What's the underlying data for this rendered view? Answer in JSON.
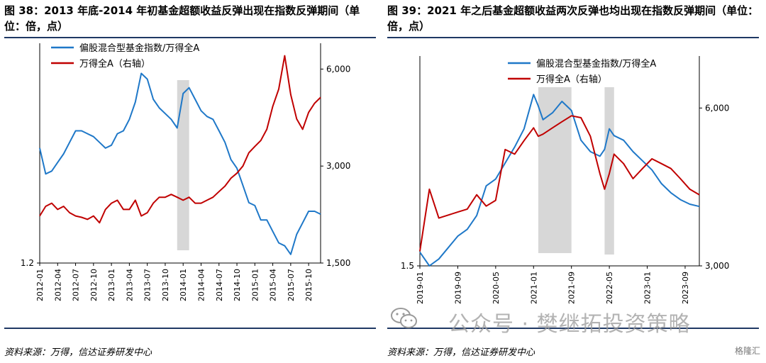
{
  "left": {
    "title": "图 38：2013 年底-2014 年初基金超额收益反弹出现在指数反弹期间（单位：倍，点）",
    "source": "资料来源：万得，信达证券研发中心",
    "chart_data": {
      "type": "line",
      "legend": [
        "偏股混合型基金指数/万得全A",
        "万得全A（右轴）"
      ],
      "legend_placement": "top-left",
      "x_ticks": [
        "2012-01",
        "2012-04",
        "2012-07",
        "2012-10",
        "2013-01",
        "2013-04",
        "2013-07",
        "2013-10",
        "2014-01",
        "2014-04",
        "2014-07",
        "2014-10",
        "2015-01",
        "2015-04",
        "2015-07",
        "2015-10"
      ],
      "y_left_ticks": [
        "1.2"
      ],
      "y_right_ticks": [
        "6,000",
        "3,000",
        "1,500"
      ],
      "y_right_scale": "log",
      "shaded_period": [
        "2013-12",
        "2014-02"
      ],
      "series": [
        {
          "name": "偏股混合型基金指数/万得全A",
          "color": "#1f78c8",
          "axis": "left",
          "x": [
            "2012-01",
            "2012-02",
            "2012-03",
            "2012-04",
            "2012-05",
            "2012-06",
            "2012-07",
            "2012-08",
            "2012-09",
            "2012-10",
            "2012-11",
            "2012-12",
            "2013-01",
            "2013-02",
            "2013-03",
            "2013-04",
            "2013-05",
            "2013-06",
            "2013-07",
            "2013-08",
            "2013-09",
            "2013-10",
            "2013-11",
            "2013-12",
            "2014-01",
            "2014-02",
            "2014-03",
            "2014-04",
            "2014-05",
            "2014-06",
            "2014-07",
            "2014-08",
            "2014-09",
            "2014-10",
            "2014-11",
            "2014-12",
            "2015-01",
            "2015-02",
            "2015-03",
            "2015-04",
            "2015-05",
            "2015-06",
            "2015-07",
            "2015-08",
            "2015-09",
            "2015-10",
            "2015-11",
            "2015-12"
          ],
          "y": [
            1.6,
            1.51,
            1.52,
            1.55,
            1.58,
            1.62,
            1.66,
            1.66,
            1.65,
            1.64,
            1.62,
            1.6,
            1.61,
            1.65,
            1.66,
            1.7,
            1.76,
            1.86,
            1.84,
            1.77,
            1.74,
            1.72,
            1.7,
            1.67,
            1.79,
            1.81,
            1.77,
            1.73,
            1.71,
            1.7,
            1.66,
            1.62,
            1.56,
            1.53,
            1.47,
            1.41,
            1.4,
            1.35,
            1.35,
            1.31,
            1.27,
            1.26,
            1.23,
            1.3,
            1.34,
            1.38,
            1.38,
            1.37
          ]
        },
        {
          "name": "万得全A（右轴）",
          "color": "#c00000",
          "axis": "right",
          "x": [
            "2012-01",
            "2012-02",
            "2012-03",
            "2012-04",
            "2012-05",
            "2012-06",
            "2012-07",
            "2012-08",
            "2012-09",
            "2012-10",
            "2012-11",
            "2012-12",
            "2013-01",
            "2013-02",
            "2013-03",
            "2013-04",
            "2013-05",
            "2013-06",
            "2013-07",
            "2013-08",
            "2013-09",
            "2013-10",
            "2013-11",
            "2013-12",
            "2014-01",
            "2014-02",
            "2014-03",
            "2014-04",
            "2014-05",
            "2014-06",
            "2014-07",
            "2014-08",
            "2014-09",
            "2014-10",
            "2014-11",
            "2014-12",
            "2015-01",
            "2015-02",
            "2015-03",
            "2015-04",
            "2015-05",
            "2015-06",
            "2015-07",
            "2015-08",
            "2015-09",
            "2015-10",
            "2015-11",
            "2015-12"
          ],
          "y": [
            2100,
            2250,
            2300,
            2200,
            2250,
            2150,
            2100,
            2080,
            2050,
            2100,
            2000,
            2200,
            2300,
            2350,
            2200,
            2200,
            2350,
            2100,
            2150,
            2300,
            2400,
            2400,
            2450,
            2400,
            2350,
            2400,
            2300,
            2300,
            2350,
            2400,
            2500,
            2600,
            2750,
            2850,
            3000,
            3300,
            3450,
            3600,
            3900,
            4600,
            5200,
            6600,
            5000,
            4200,
            3900,
            4400,
            4700,
            4900
          ]
        }
      ]
    }
  },
  "right": {
    "title": "图 39：2021 年之后基金超额收益两次反弹也均出现在指数反弹期间（单位：倍，点）",
    "source": "资料来源：万得，信达证券研发中心",
    "chart_data": {
      "type": "line",
      "legend": [
        "偏股混合型基金指数/万得全A",
        "万得全A（右轴）"
      ],
      "legend_placement": "top-center",
      "x_ticks": [
        "2019-01",
        "2019-09",
        "2020-05",
        "2021-01",
        "2021-09",
        "2022-05",
        "2023-01",
        "2023-09"
      ],
      "y_left_ticks": [
        "1.5"
      ],
      "y_right_ticks": [
        "6,000",
        "3,000"
      ],
      "y_right_scale": "log",
      "shaded_periods": [
        [
          "2021-02",
          "2021-09"
        ],
        [
          "2022-04",
          "2022-06"
        ]
      ],
      "series": [
        {
          "name": "偏股混合型基金指数/万得全A",
          "color": "#1f78c8",
          "axis": "left",
          "x": [
            "2019-01",
            "2019-03",
            "2019-05",
            "2019-07",
            "2019-09",
            "2019-11",
            "2020-01",
            "2020-03",
            "2020-05",
            "2020-07",
            "2020-09",
            "2020-11",
            "2021-01",
            "2021-02",
            "2021-03",
            "2021-05",
            "2021-07",
            "2021-09",
            "2021-11",
            "2022-01",
            "2022-03",
            "2022-04",
            "2022-05",
            "2022-06",
            "2022-08",
            "2022-10",
            "2022-12",
            "2023-02",
            "2023-04",
            "2023-06",
            "2023-08",
            "2023-10",
            "2023-12"
          ],
          "y": [
            1.56,
            1.5,
            1.53,
            1.58,
            1.63,
            1.66,
            1.72,
            1.85,
            1.88,
            1.95,
            2.02,
            2.1,
            2.25,
            2.2,
            2.14,
            2.17,
            2.22,
            2.18,
            2.05,
            2.0,
            1.98,
            2.01,
            2.1,
            2.07,
            2.05,
            2.0,
            1.96,
            1.92,
            1.86,
            1.82,
            1.79,
            1.77,
            1.76
          ]
        },
        {
          "name": "万得全A（右轴）",
          "color": "#c00000",
          "axis": "right",
          "x": [
            "2019-01",
            "2019-03",
            "2019-05",
            "2019-07",
            "2019-09",
            "2019-11",
            "2020-01",
            "2020-03",
            "2020-05",
            "2020-07",
            "2020-09",
            "2020-11",
            "2021-01",
            "2021-02",
            "2021-03",
            "2021-05",
            "2021-07",
            "2021-09",
            "2021-11",
            "2022-01",
            "2022-03",
            "2022-04",
            "2022-05",
            "2022-06",
            "2022-08",
            "2022-10",
            "2022-12",
            "2023-02",
            "2023-04",
            "2023-06",
            "2023-08",
            "2023-10",
            "2023-12"
          ],
          "y": [
            3200,
            4200,
            3700,
            3750,
            3800,
            3850,
            4100,
            3900,
            4000,
            5000,
            4900,
            5200,
            5500,
            5300,
            5350,
            5500,
            5650,
            5800,
            5750,
            5300,
            4500,
            4200,
            4500,
            4900,
            4700,
            4400,
            4600,
            4800,
            4700,
            4600,
            4400,
            4200,
            4100
          ]
        }
      ]
    }
  },
  "watermark": {
    "text": "公众号 · 樊继拓投资策略",
    "badge": "格隆汇"
  }
}
